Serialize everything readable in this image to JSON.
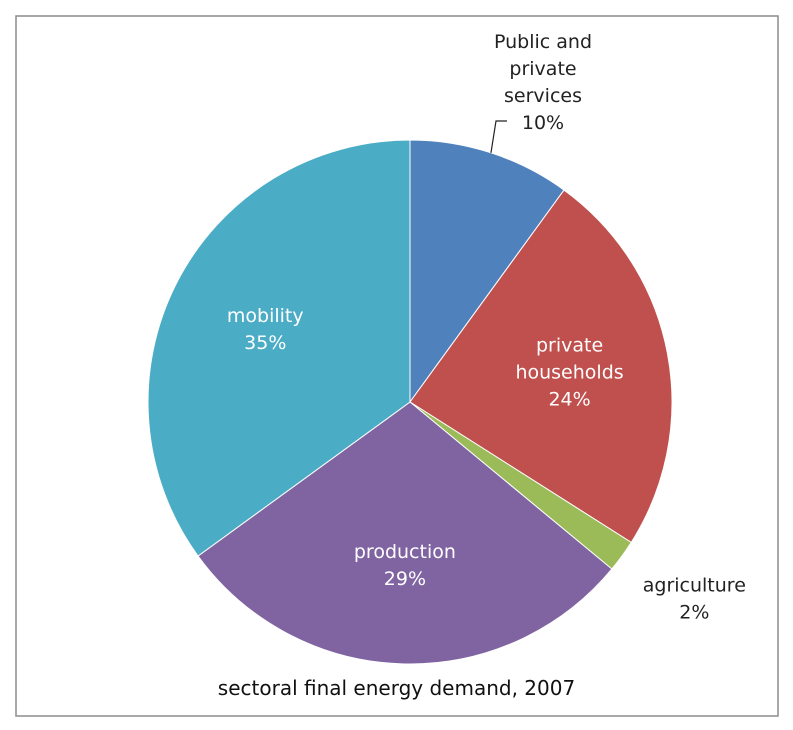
{
  "chart_data": {
    "type": "pie",
    "title": "sectoral final energy demand, 2007",
    "start_angle_deg": 0,
    "direction": "clockwise",
    "slices": [
      {
        "label": "Public and private services",
        "label_lines": [
          "Public and",
          "private",
          "services",
          "10%"
        ],
        "value": 10,
        "color": "#4F81BD",
        "label_placement": "outside-leader"
      },
      {
        "label": "private households",
        "label_lines": [
          "private",
          "households",
          "24%"
        ],
        "value": 24,
        "color": "#C0504D",
        "label_placement": "inside"
      },
      {
        "label": "agriculture",
        "label_lines": [
          "agriculture",
          "2%"
        ],
        "value": 2,
        "color": "#9BBB59",
        "label_placement": "outside"
      },
      {
        "label": "production",
        "label_lines": [
          "production",
          "29%"
        ],
        "value": 29,
        "color": "#8064A2",
        "label_placement": "inside"
      },
      {
        "label": "mobility",
        "label_lines": [
          "mobility",
          "35%"
        ],
        "value": 35,
        "color": "#4BACC6",
        "label_placement": "inside"
      }
    ]
  }
}
